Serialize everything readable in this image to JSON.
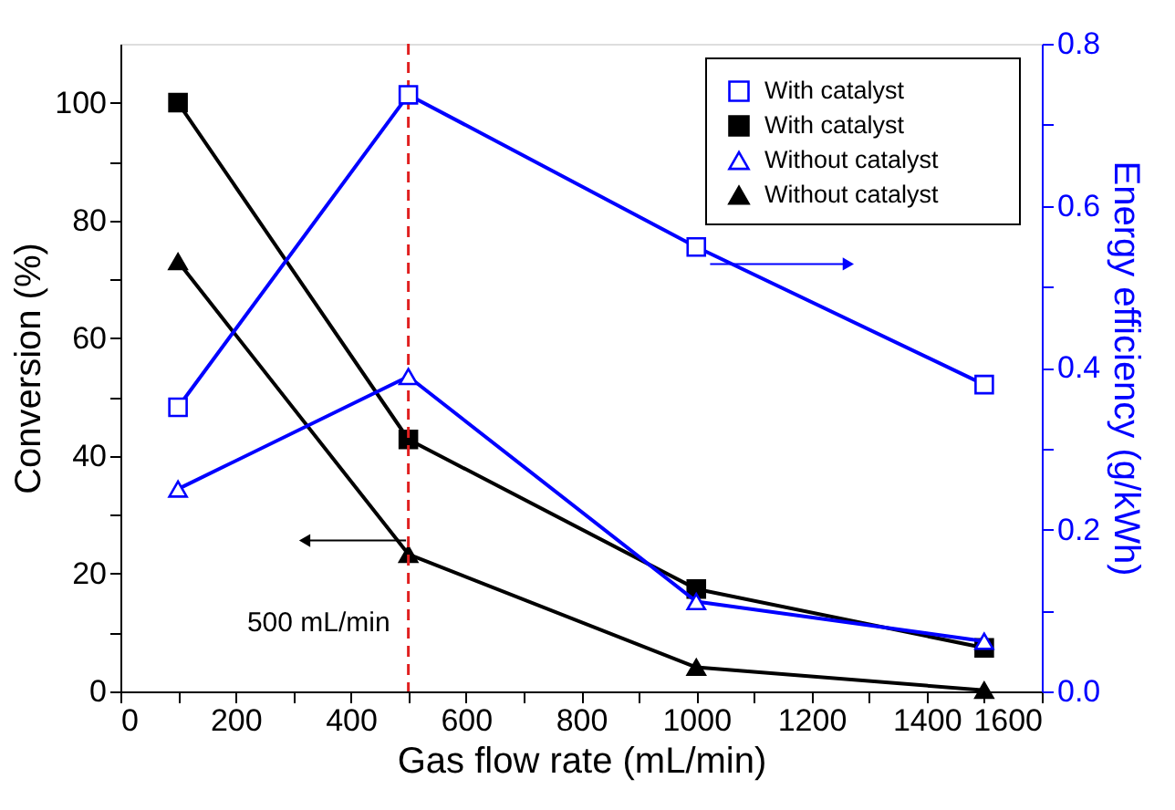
{
  "chart_data": {
    "type": "line",
    "xlabel": "Gas flow rate (mL/min)",
    "ylabel": "Conversion (%)",
    "y2label": "Energy efficiency (g/kWh)",
    "x": [
      100,
      500,
      1000,
      1500
    ],
    "xlim": [
      0,
      1600
    ],
    "xticks": [
      0,
      {
        "value": 100,
        "label": null
      },
      200,
      {
        "value": 300,
        "label": null
      },
      400,
      {
        "value": 500,
        "label": null
      },
      600,
      {
        "value": 700,
        "label": null
      },
      800,
      {
        "value": 900,
        "label": null
      },
      1000,
      {
        "value": 1100,
        "label": null
      },
      1200,
      {
        "value": 1300,
        "label": null
      },
      1400,
      {
        "value": 1500,
        "label": null
      },
      1600
    ],
    "ylim": [
      0,
      110
    ],
    "yticks": [
      0,
      {
        "value": 10,
        "label": null
      },
      20,
      {
        "value": 30,
        "label": null
      },
      40,
      {
        "value": 50,
        "label": null
      },
      60,
      {
        "value": 70,
        "label": null
      },
      80,
      {
        "value": 90,
        "label": null
      },
      100
    ],
    "y2lim": [
      0,
      0.8
    ],
    "y2ticks": [
      {
        "value": 0,
        "label": "0.0"
      },
      {
        "value": 0.1,
        "label": null
      },
      0.2,
      {
        "value": 0.3,
        "label": null
      },
      0.4,
      {
        "value": 0.5,
        "label": null
      },
      0.6,
      {
        "value": 0.7,
        "label": null
      },
      0.8
    ],
    "series": [
      {
        "name": "With catalyst",
        "color": "#0000ff",
        "axis": "y2",
        "marker": "square",
        "values": [
          0.351,
          0.737,
          0.549,
          0.379
        ]
      },
      {
        "name": "With catalyst",
        "color": "#000000",
        "marker": "square",
        "values": [
          100,
          42.8,
          17.4,
          7.4
        ]
      },
      {
        "name": "Without catalyst",
        "color": "#0000ff",
        "axis": "y2",
        "marker": "triangle",
        "values": [
          0.25,
          0.389,
          0.111,
          0.062
        ]
      },
      {
        "name": "Without catalyst",
        "color": "#000000",
        "marker": "triangle",
        "values": [
          73,
          23.3,
          4.1,
          0.2
        ]
      }
    ],
    "ref_lines": [
      {
        "axis": "x",
        "value": 500,
        "label": "500 mL/min",
        "color": "#e02020",
        "line_style": "dashed"
      }
    ],
    "legend": "top right",
    "grid": false
  }
}
